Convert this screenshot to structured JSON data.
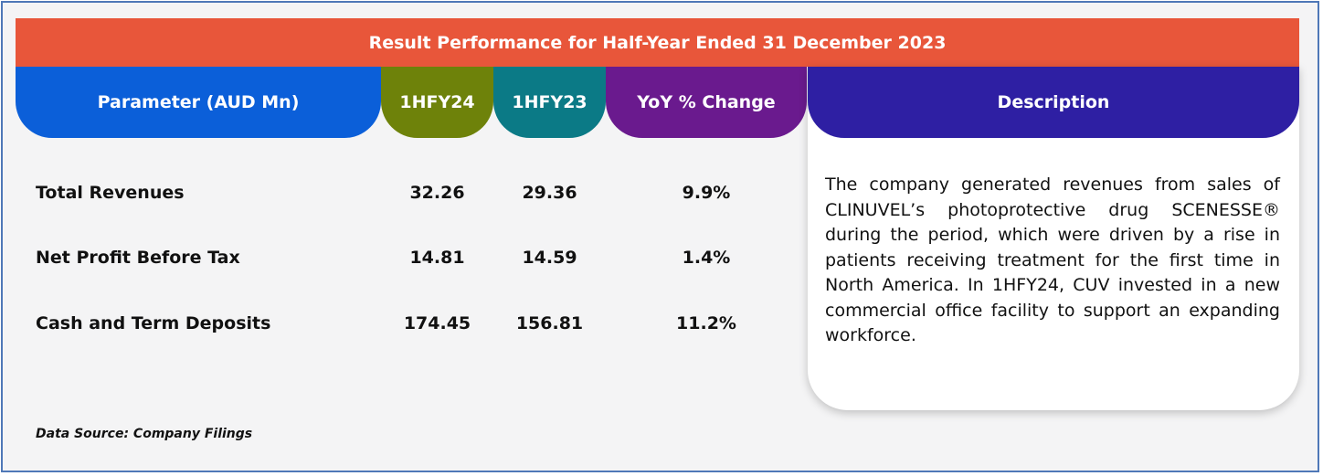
{
  "title": "Result Performance for Half-Year Ended 31 December 2023",
  "headers": {
    "parameter": "Parameter (AUD Mn)",
    "h1fy24": "1HFY24",
    "h1fy23": "1HFY23",
    "yoy": "YoY % Change",
    "description": "Description"
  },
  "rows": [
    {
      "label": "Total Revenues",
      "h1fy24": "32.26",
      "h1fy23": "29.36",
      "yoy": "9.9%"
    },
    {
      "label": "Net Profit Before Tax",
      "h1fy24": "14.81",
      "h1fy23": "14.59",
      "yoy": "1.4%"
    },
    {
      "label": "Cash and Term Deposits",
      "h1fy24": "174.45",
      "h1fy23": "156.81",
      "yoy": "11.2%"
    }
  ],
  "description": "The company generated revenues from sales of CLINUVEL’s photoprotective drug SCENESSE® during the period, which were driven by a rise in patients receiving treatment for the first time in North America. In 1HFY24, CUV invested in a new commercial office facility to support an expanding workforce.",
  "source": "Data Source: Company Filings",
  "colors": {
    "title_bar": "#e8563a",
    "parameter_header": "#0b5fd9",
    "h1fy24_header": "#6e820a",
    "h1fy23_header": "#0b7a86",
    "yoy_header": "#6a1a8e",
    "description_header": "#2e1fa3"
  }
}
